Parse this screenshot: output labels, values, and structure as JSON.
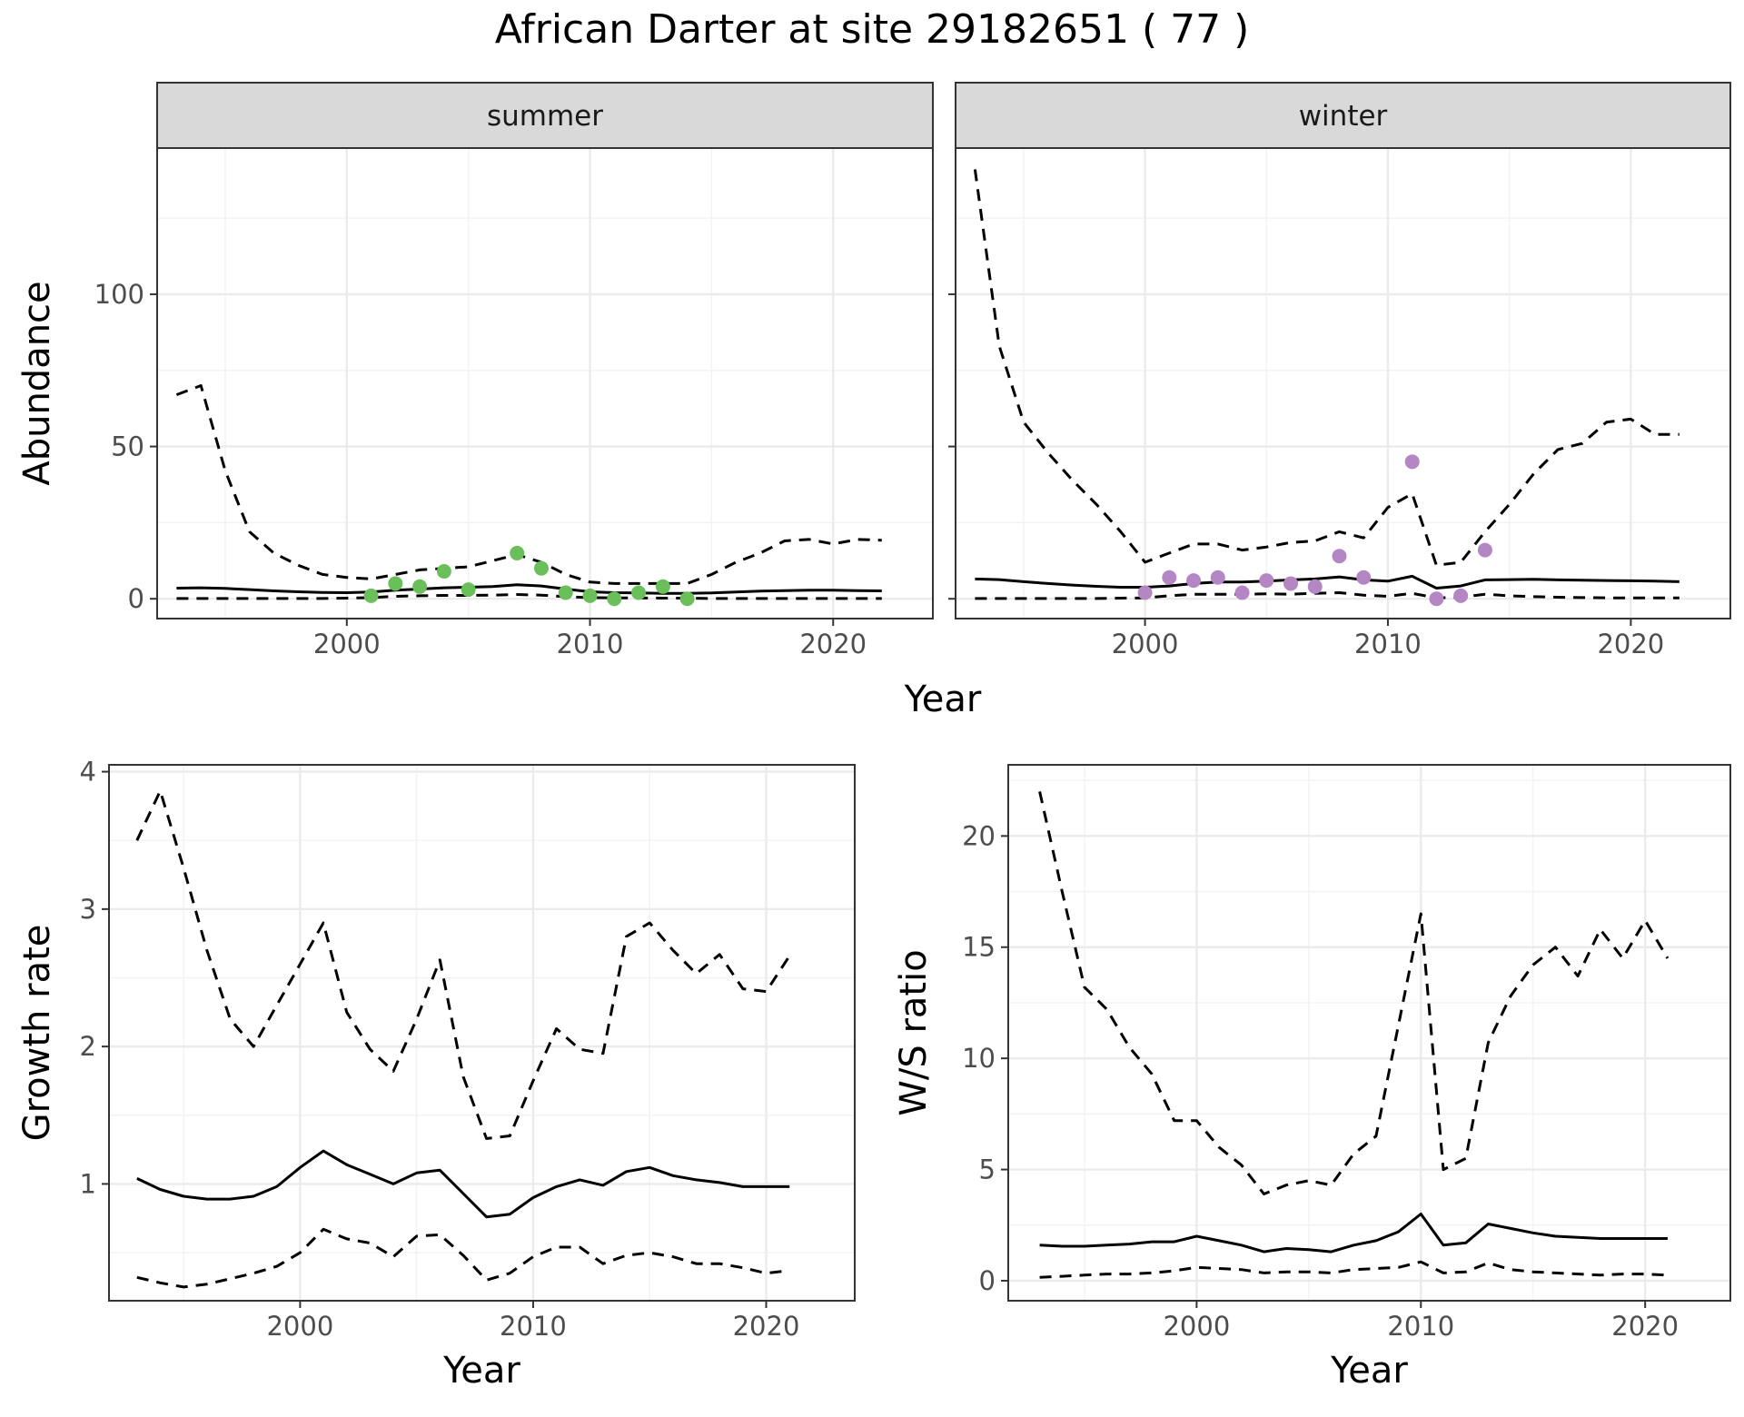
{
  "figure": {
    "title": "African Darter at site 29182651 ( 77 )"
  },
  "colors": {
    "summer_points": "#6abf5a",
    "winter_points": "#b487c4",
    "lines": "#000000",
    "grid_major": "#ebebeb",
    "grid_minor": "#f3f3f3",
    "strip_fill": "#d9d9d9",
    "panel_border": "#333333"
  },
  "chart_data": [
    {
      "id": "abundance-summer",
      "type": "line",
      "facet_label": "summer",
      "ylabel": "Abundance",
      "xlabel": "Year",
      "xlim": [
        1992.2,
        2024.1
      ],
      "ylim": [
        -6.5,
        148
      ],
      "x_ticks": [
        2000,
        2010,
        2020
      ],
      "y_ticks": [
        0,
        50,
        100
      ],
      "grid": true,
      "series": [
        {
          "role": "mean",
          "style": "solid",
          "x": [
            1993,
            1994,
            1995,
            1996,
            1997,
            1998,
            1999,
            2000,
            2001,
            2002,
            2003,
            2004,
            2005,
            2006,
            2007,
            2008,
            2009,
            2010,
            2011,
            2012,
            2013,
            2014,
            2015,
            2016,
            2017,
            2018,
            2019,
            2020,
            2021,
            2022
          ],
          "y": [
            3.5,
            3.6,
            3.4,
            3.0,
            2.6,
            2.3,
            2.1,
            2.0,
            2.2,
            2.8,
            3.2,
            3.6,
            3.8,
            4.0,
            4.6,
            4.2,
            3.2,
            2.3,
            2.0,
            1.9,
            1.8,
            1.8,
            1.9,
            2.2,
            2.5,
            2.7,
            2.8,
            2.8,
            2.7,
            2.6
          ]
        },
        {
          "role": "upper",
          "style": "dashed",
          "x": [
            1993,
            1994,
            1995,
            1996,
            1997,
            1998,
            1999,
            2000,
            2001,
            2002,
            2003,
            2004,
            2005,
            2006,
            2007,
            2008,
            2009,
            2010,
            2011,
            2012,
            2013,
            2014,
            2015,
            2016,
            2017,
            2018,
            2019,
            2020,
            2021,
            2022
          ],
          "y": [
            67,
            70,
            42,
            22,
            15,
            11,
            8,
            7,
            6.5,
            8,
            9.5,
            10,
            10.5,
            12.5,
            14.5,
            12,
            8,
            5.5,
            5,
            5,
            5,
            5,
            8,
            12,
            15,
            19,
            19.5,
            18,
            19.5,
            19.2
          ]
        },
        {
          "role": "lower",
          "style": "dashed",
          "x": [
            1993,
            1994,
            1995,
            1996,
            1997,
            1998,
            1999,
            2000,
            2001,
            2002,
            2003,
            2004,
            2005,
            2006,
            2007,
            2008,
            2009,
            2010,
            2011,
            2012,
            2013,
            2014,
            2015,
            2016,
            2017,
            2018,
            2019,
            2020,
            2021,
            2022
          ],
          "y": [
            0.1,
            0.1,
            0.1,
            0.1,
            0.1,
            0.1,
            0.1,
            0.2,
            0.4,
            0.8,
            1.0,
            1.1,
            1.1,
            1.2,
            1.4,
            1.2,
            0.7,
            0.4,
            0.3,
            0.3,
            0.2,
            0.2,
            0.1,
            0.1,
            0.1,
            0.1,
            0.1,
            0.1,
            0.1,
            0.1
          ]
        },
        {
          "role": "observed",
          "style": "points",
          "x": [
            2001,
            2002,
            2003,
            2004,
            2005,
            2007,
            2008,
            2009,
            2010,
            2011,
            2012,
            2013,
            2014
          ],
          "y": [
            1,
            5,
            4,
            9,
            3,
            15,
            10,
            2,
            1,
            0,
            2,
            4,
            0
          ]
        }
      ]
    },
    {
      "id": "abundance-winter",
      "type": "line",
      "facet_label": "winter",
      "ylabel": "",
      "xlabel": "Year",
      "xlim": [
        1992.2,
        2024.1
      ],
      "ylim": [
        -6.5,
        148
      ],
      "x_ticks": [
        2000,
        2010,
        2020
      ],
      "y_ticks": [
        0,
        50,
        100
      ],
      "grid": true,
      "series": [
        {
          "role": "mean",
          "style": "solid",
          "x": [
            1993,
            1994,
            1995,
            1996,
            1997,
            1998,
            1999,
            2000,
            2001,
            2002,
            2003,
            2004,
            2005,
            2006,
            2007,
            2008,
            2009,
            2010,
            2011,
            2012,
            2013,
            2014,
            2015,
            2016,
            2017,
            2018,
            2019,
            2020,
            2021,
            2022
          ],
          "y": [
            6.5,
            6.3,
            5.6,
            5.0,
            4.5,
            4.1,
            3.8,
            3.8,
            4.2,
            5.0,
            5.5,
            5.5,
            5.8,
            6.2,
            6.5,
            7.2,
            6.2,
            5.8,
            7.4,
            3.5,
            4.2,
            6.2,
            6.3,
            6.4,
            6.2,
            6.1,
            6.0,
            5.9,
            5.8,
            5.6
          ]
        },
        {
          "role": "upper",
          "style": "dashed",
          "x": [
            1993,
            1994,
            1995,
            1996,
            1997,
            1998,
            1999,
            2000,
            2001,
            2002,
            2003,
            2004,
            2005,
            2006,
            2007,
            2008,
            2009,
            2010,
            2011,
            2012,
            2013,
            2014,
            2015,
            2016,
            2017,
            2018,
            2019,
            2020,
            2021,
            2022
          ],
          "y": [
            141,
            83,
            58,
            48,
            39,
            31,
            22,
            12,
            15,
            18,
            18,
            16,
            17,
            18.5,
            19,
            22,
            20,
            30,
            34.5,
            11,
            12,
            22,
            31,
            41,
            49,
            51,
            58,
            59,
            54,
            54
          ]
        },
        {
          "role": "lower",
          "style": "dashed",
          "x": [
            1993,
            1994,
            1995,
            1996,
            1997,
            1998,
            1999,
            2000,
            2001,
            2002,
            2003,
            2004,
            2005,
            2006,
            2007,
            2008,
            2009,
            2010,
            2011,
            2012,
            2013,
            2014,
            2015,
            2016,
            2017,
            2018,
            2019,
            2020,
            2021,
            2022
          ],
          "y": [
            0.1,
            0.1,
            0.1,
            0.1,
            0.1,
            0.1,
            0.2,
            0.3,
            1.0,
            1.5,
            1.5,
            1.5,
            1.6,
            1.5,
            1.8,
            2.0,
            1.2,
            0.8,
            1.8,
            0.3,
            0.5,
            1.5,
            1.0,
            0.7,
            0.5,
            0.4,
            0.3,
            0.3,
            0.3,
            0.3
          ]
        },
        {
          "role": "observed",
          "style": "points",
          "x": [
            2000,
            2001,
            2002,
            2003,
            2004,
            2005,
            2006,
            2007,
            2008,
            2009,
            2011,
            2012,
            2013,
            2014
          ],
          "y": [
            2,
            7,
            6,
            7,
            2,
            6,
            5,
            4,
            14,
            7,
            45,
            0,
            1,
            16
          ]
        }
      ]
    },
    {
      "id": "growth-rate",
      "type": "line",
      "ylabel": "Growth rate",
      "xlabel": "Year",
      "xlim": [
        1991.8,
        2023.8
      ],
      "ylim": [
        0.15,
        4.05
      ],
      "x_ticks": [
        2000,
        2010,
        2020
      ],
      "y_ticks": [
        1,
        2,
        3,
        4
      ],
      "grid": true,
      "series": [
        {
          "role": "mean",
          "style": "solid",
          "x": [
            1993,
            1994,
            1995,
            1996,
            1997,
            1998,
            1999,
            2000,
            2001,
            2002,
            2003,
            2004,
            2005,
            2006,
            2007,
            2008,
            2009,
            2010,
            2011,
            2012,
            2013,
            2014,
            2015,
            2016,
            2017,
            2018,
            2019,
            2020,
            2021
          ],
          "y": [
            1.04,
            0.96,
            0.91,
            0.89,
            0.89,
            0.91,
            0.98,
            1.12,
            1.24,
            1.14,
            1.07,
            1.0,
            1.08,
            1.1,
            0.93,
            0.76,
            0.78,
            0.9,
            0.98,
            1.03,
            0.99,
            1.09,
            1.12,
            1.06,
            1.03,
            1.01,
            0.98,
            0.98,
            0.98
          ]
        },
        {
          "role": "upper",
          "style": "dashed",
          "x": [
            1993,
            1994,
            1995,
            1996,
            1997,
            1998,
            1999,
            2000,
            2001,
            2002,
            2003,
            2004,
            2005,
            2006,
            2007,
            2008,
            2009,
            2010,
            2011,
            2012,
            2013,
            2014,
            2015,
            2016,
            2017,
            2018,
            2019,
            2020,
            2021
          ],
          "y": [
            3.5,
            3.86,
            3.3,
            2.7,
            2.2,
            2.0,
            2.3,
            2.6,
            2.9,
            2.25,
            1.98,
            1.82,
            2.2,
            2.63,
            1.78,
            1.33,
            1.35,
            1.75,
            2.13,
            1.98,
            1.95,
            2.8,
            2.9,
            2.7,
            2.53,
            2.67,
            2.42,
            2.4,
            2.66
          ]
        },
        {
          "role": "lower",
          "style": "dashed",
          "x": [
            1993,
            1994,
            1995,
            1996,
            1997,
            1998,
            1999,
            2000,
            2001,
            2002,
            2003,
            2004,
            2005,
            2006,
            2007,
            2008,
            2009,
            2010,
            2011,
            2012,
            2013,
            2014,
            2015,
            2016,
            2017,
            2018,
            2019,
            2020,
            2021
          ],
          "y": [
            0.32,
            0.28,
            0.25,
            0.27,
            0.31,
            0.35,
            0.4,
            0.5,
            0.67,
            0.6,
            0.57,
            0.47,
            0.62,
            0.63,
            0.48,
            0.3,
            0.35,
            0.47,
            0.54,
            0.54,
            0.42,
            0.48,
            0.5,
            0.47,
            0.42,
            0.42,
            0.39,
            0.35,
            0.37
          ]
        }
      ]
    },
    {
      "id": "ws-ratio",
      "type": "line",
      "ylabel": "W/S ratio",
      "xlabel": "Year",
      "xlim": [
        1991.6,
        2023.8
      ],
      "ylim": [
        -0.9,
        23.2
      ],
      "x_ticks": [
        2000,
        2010,
        2020
      ],
      "y_ticks": [
        0,
        5,
        10,
        15,
        20
      ],
      "grid": true,
      "series": [
        {
          "role": "mean",
          "style": "solid",
          "x": [
            1993,
            1994,
            1995,
            1996,
            1997,
            1998,
            1999,
            2000,
            2001,
            2002,
            2003,
            2004,
            2005,
            2006,
            2007,
            2008,
            2009,
            2010,
            2011,
            2012,
            2013,
            2014,
            2015,
            2016,
            2017,
            2018,
            2019,
            2020,
            2021
          ],
          "y": [
            1.6,
            1.55,
            1.55,
            1.6,
            1.65,
            1.75,
            1.75,
            2.0,
            1.8,
            1.6,
            1.3,
            1.45,
            1.4,
            1.3,
            1.6,
            1.8,
            2.2,
            3.0,
            1.6,
            1.7,
            2.55,
            2.35,
            2.15,
            2.0,
            1.95,
            1.9,
            1.9,
            1.9,
            1.9
          ]
        },
        {
          "role": "upper",
          "style": "dashed",
          "x": [
            1993,
            1994,
            1995,
            1996,
            1997,
            1998,
            1999,
            2000,
            2001,
            2002,
            2003,
            2004,
            2005,
            2006,
            2007,
            2008,
            2009,
            2010,
            2011,
            2012,
            2013,
            2014,
            2015,
            2016,
            2017,
            2018,
            2019,
            2020,
            2021
          ],
          "y": [
            22,
            17.5,
            13.2,
            12.2,
            10.5,
            9.3,
            7.2,
            7.2,
            6,
            5.2,
            3.9,
            4.3,
            4.5,
            4.3,
            5.7,
            6.5,
            11.5,
            16.5,
            5.0,
            5.5,
            10.7,
            12.8,
            14.2,
            15.0,
            13.7,
            15.8,
            14.5,
            16.2,
            14.5
          ]
        },
        {
          "role": "lower",
          "style": "dashed",
          "x": [
            1993,
            1994,
            1995,
            1996,
            1997,
            1998,
            1999,
            2000,
            2001,
            2002,
            2003,
            2004,
            2005,
            2006,
            2007,
            2008,
            2009,
            2010,
            2011,
            2012,
            2013,
            2014,
            2015,
            2016,
            2017,
            2018,
            2019,
            2020,
            2021
          ],
          "y": [
            0.15,
            0.2,
            0.25,
            0.3,
            0.3,
            0.35,
            0.45,
            0.6,
            0.55,
            0.5,
            0.35,
            0.4,
            0.4,
            0.35,
            0.5,
            0.55,
            0.6,
            0.85,
            0.35,
            0.4,
            0.8,
            0.5,
            0.4,
            0.35,
            0.3,
            0.25,
            0.3,
            0.3,
            0.25
          ]
        }
      ]
    }
  ]
}
